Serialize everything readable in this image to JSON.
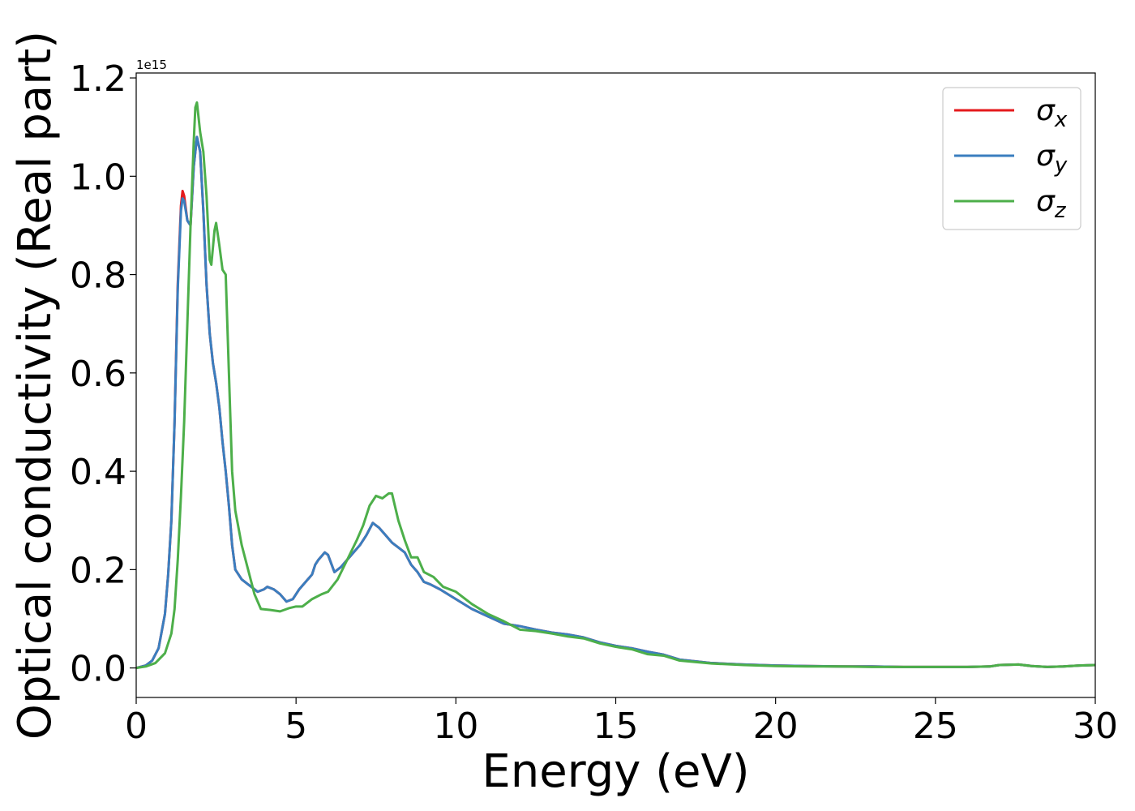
{
  "chart_data": {
    "type": "line",
    "title": "",
    "xlabel": "Energy (eV)",
    "ylabel": "Optical conductivity (Real part)",
    "y_offset_label": "1e15",
    "xlim": [
      0,
      30
    ],
    "ylim": [
      -0.06,
      1.21
    ],
    "xticks": [
      0,
      5,
      10,
      15,
      20,
      25,
      30
    ],
    "yticks": [
      0.0,
      0.2,
      0.4,
      0.6,
      0.8,
      1.0,
      1.2
    ],
    "xtick_labels": [
      "0",
      "5",
      "10",
      "15",
      "20",
      "25",
      "30"
    ],
    "ytick_labels": [
      "0.0",
      "0.2",
      "0.4",
      "0.6",
      "0.8",
      "1.0",
      "1.2"
    ],
    "grid": false,
    "legend_position": "top-right",
    "series": [
      {
        "name": "σx",
        "label_symbol": "σ",
        "label_sub": "x",
        "color": "#e41a1c",
        "points": [
          [
            0,
            0
          ],
          [
            0.3,
            0.005
          ],
          [
            0.5,
            0.015
          ],
          [
            0.7,
            0.04
          ],
          [
            0.9,
            0.11
          ],
          [
            1.0,
            0.19
          ],
          [
            1.1,
            0.3
          ],
          [
            1.2,
            0.5
          ],
          [
            1.3,
            0.78
          ],
          [
            1.4,
            0.94
          ],
          [
            1.45,
            0.97
          ],
          [
            1.5,
            0.96
          ],
          [
            1.6,
            0.91
          ],
          [
            1.7,
            0.9
          ],
          [
            1.8,
            1.02
          ],
          [
            1.9,
            1.08
          ],
          [
            2.0,
            1.05
          ],
          [
            2.1,
            0.93
          ],
          [
            2.2,
            0.78
          ],
          [
            2.3,
            0.68
          ],
          [
            2.4,
            0.62
          ],
          [
            2.5,
            0.58
          ],
          [
            2.6,
            0.53
          ],
          [
            2.7,
            0.46
          ],
          [
            2.8,
            0.4
          ],
          [
            2.9,
            0.33
          ],
          [
            3.0,
            0.25
          ],
          [
            3.1,
            0.2
          ],
          [
            3.3,
            0.18
          ],
          [
            3.5,
            0.17
          ],
          [
            3.8,
            0.155
          ],
          [
            4.0,
            0.16
          ],
          [
            4.1,
            0.165
          ],
          [
            4.3,
            0.16
          ],
          [
            4.5,
            0.15
          ],
          [
            4.7,
            0.135
          ],
          [
            4.9,
            0.14
          ],
          [
            5.1,
            0.16
          ],
          [
            5.3,
            0.175
          ],
          [
            5.5,
            0.19
          ],
          [
            5.6,
            0.21
          ],
          [
            5.7,
            0.22
          ],
          [
            5.9,
            0.235
          ],
          [
            6.0,
            0.23
          ],
          [
            6.2,
            0.195
          ],
          [
            6.4,
            0.205
          ],
          [
            6.6,
            0.22
          ],
          [
            6.8,
            0.235
          ],
          [
            7.0,
            0.25
          ],
          [
            7.2,
            0.27
          ],
          [
            7.4,
            0.295
          ],
          [
            7.6,
            0.285
          ],
          [
            7.8,
            0.27
          ],
          [
            8.0,
            0.255
          ],
          [
            8.2,
            0.245
          ],
          [
            8.4,
            0.235
          ],
          [
            8.6,
            0.21
          ],
          [
            8.8,
            0.195
          ],
          [
            9.0,
            0.175
          ],
          [
            9.2,
            0.17
          ],
          [
            9.5,
            0.16
          ],
          [
            10.0,
            0.14
          ],
          [
            10.5,
            0.12
          ],
          [
            11.0,
            0.105
          ],
          [
            11.5,
            0.09
          ],
          [
            12.0,
            0.085
          ],
          [
            12.5,
            0.078
          ],
          [
            13.0,
            0.072
          ],
          [
            13.5,
            0.068
          ],
          [
            14.0,
            0.062
          ],
          [
            14.5,
            0.052
          ],
          [
            15.0,
            0.045
          ],
          [
            15.5,
            0.04
          ],
          [
            16.0,
            0.033
          ],
          [
            16.5,
            0.027
          ],
          [
            17.0,
            0.017
          ],
          [
            18.0,
            0.01
          ],
          [
            19.0,
            0.007
          ],
          [
            20.0,
            0.005
          ],
          [
            21.0,
            0.004
          ],
          [
            22.0,
            0.003
          ],
          [
            23.0,
            0.003
          ],
          [
            24.0,
            0.002
          ],
          [
            25.0,
            0.002
          ],
          [
            26.0,
            0.002
          ],
          [
            26.7,
            0.003
          ],
          [
            27.0,
            0.006
          ],
          [
            27.6,
            0.007
          ],
          [
            28.0,
            0.004
          ],
          [
            28.5,
            0.002
          ],
          [
            29.0,
            0.003
          ],
          [
            29.5,
            0.005
          ],
          [
            30.0,
            0.006
          ]
        ]
      },
      {
        "name": "σy",
        "label_symbol": "σ",
        "label_sub": "y",
        "color": "#3a7ebf",
        "points": [
          [
            0,
            0
          ],
          [
            0.3,
            0.005
          ],
          [
            0.5,
            0.015
          ],
          [
            0.7,
            0.04
          ],
          [
            0.9,
            0.11
          ],
          [
            1.0,
            0.19
          ],
          [
            1.1,
            0.3
          ],
          [
            1.2,
            0.5
          ],
          [
            1.3,
            0.77
          ],
          [
            1.4,
            0.93
          ],
          [
            1.45,
            0.955
          ],
          [
            1.5,
            0.95
          ],
          [
            1.6,
            0.91
          ],
          [
            1.7,
            0.9
          ],
          [
            1.8,
            1.02
          ],
          [
            1.9,
            1.08
          ],
          [
            2.0,
            1.05
          ],
          [
            2.1,
            0.93
          ],
          [
            2.2,
            0.78
          ],
          [
            2.3,
            0.68
          ],
          [
            2.4,
            0.62
          ],
          [
            2.5,
            0.58
          ],
          [
            2.6,
            0.53
          ],
          [
            2.7,
            0.46
          ],
          [
            2.8,
            0.4
          ],
          [
            2.9,
            0.33
          ],
          [
            3.0,
            0.25
          ],
          [
            3.1,
            0.2
          ],
          [
            3.3,
            0.18
          ],
          [
            3.5,
            0.17
          ],
          [
            3.8,
            0.155
          ],
          [
            4.0,
            0.16
          ],
          [
            4.1,
            0.165
          ],
          [
            4.3,
            0.16
          ],
          [
            4.5,
            0.15
          ],
          [
            4.7,
            0.135
          ],
          [
            4.9,
            0.14
          ],
          [
            5.1,
            0.16
          ],
          [
            5.3,
            0.175
          ],
          [
            5.5,
            0.19
          ],
          [
            5.6,
            0.21
          ],
          [
            5.7,
            0.22
          ],
          [
            5.9,
            0.235
          ],
          [
            6.0,
            0.23
          ],
          [
            6.2,
            0.195
          ],
          [
            6.4,
            0.205
          ],
          [
            6.6,
            0.22
          ],
          [
            6.8,
            0.235
          ],
          [
            7.0,
            0.25
          ],
          [
            7.2,
            0.27
          ],
          [
            7.4,
            0.295
          ],
          [
            7.6,
            0.285
          ],
          [
            7.8,
            0.27
          ],
          [
            8.0,
            0.255
          ],
          [
            8.2,
            0.245
          ],
          [
            8.4,
            0.235
          ],
          [
            8.6,
            0.21
          ],
          [
            8.8,
            0.195
          ],
          [
            9.0,
            0.175
          ],
          [
            9.2,
            0.17
          ],
          [
            9.5,
            0.16
          ],
          [
            10.0,
            0.14
          ],
          [
            10.5,
            0.12
          ],
          [
            11.0,
            0.105
          ],
          [
            11.5,
            0.09
          ],
          [
            12.0,
            0.085
          ],
          [
            12.5,
            0.078
          ],
          [
            13.0,
            0.072
          ],
          [
            13.5,
            0.068
          ],
          [
            14.0,
            0.062
          ],
          [
            14.5,
            0.052
          ],
          [
            15.0,
            0.045
          ],
          [
            15.5,
            0.04
          ],
          [
            16.0,
            0.033
          ],
          [
            16.5,
            0.027
          ],
          [
            17.0,
            0.017
          ],
          [
            18.0,
            0.01
          ],
          [
            19.0,
            0.007
          ],
          [
            20.0,
            0.005
          ],
          [
            21.0,
            0.004
          ],
          [
            22.0,
            0.003
          ],
          [
            23.0,
            0.003
          ],
          [
            24.0,
            0.002
          ],
          [
            25.0,
            0.002
          ],
          [
            26.0,
            0.002
          ],
          [
            26.7,
            0.003
          ],
          [
            27.0,
            0.006
          ],
          [
            27.6,
            0.007
          ],
          [
            28.0,
            0.004
          ],
          [
            28.5,
            0.002
          ],
          [
            29.0,
            0.003
          ],
          [
            29.5,
            0.005
          ],
          [
            30.0,
            0.006
          ]
        ]
      },
      {
        "name": "σz",
        "label_symbol": "σ",
        "label_sub": "z",
        "color": "#4daf4a",
        "points": [
          [
            0,
            0
          ],
          [
            0.3,
            0.003
          ],
          [
            0.6,
            0.01
          ],
          [
            0.9,
            0.03
          ],
          [
            1.1,
            0.07
          ],
          [
            1.2,
            0.12
          ],
          [
            1.3,
            0.22
          ],
          [
            1.4,
            0.35
          ],
          [
            1.5,
            0.5
          ],
          [
            1.6,
            0.7
          ],
          [
            1.7,
            0.9
          ],
          [
            1.8,
            1.07
          ],
          [
            1.85,
            1.14
          ],
          [
            1.9,
            1.15
          ],
          [
            2.0,
            1.09
          ],
          [
            2.1,
            1.05
          ],
          [
            2.2,
            0.96
          ],
          [
            2.3,
            0.83
          ],
          [
            2.35,
            0.82
          ],
          [
            2.45,
            0.89
          ],
          [
            2.5,
            0.905
          ],
          [
            2.6,
            0.86
          ],
          [
            2.7,
            0.81
          ],
          [
            2.8,
            0.8
          ],
          [
            2.9,
            0.6
          ],
          [
            3.0,
            0.4
          ],
          [
            3.1,
            0.32
          ],
          [
            3.3,
            0.25
          ],
          [
            3.5,
            0.2
          ],
          [
            3.7,
            0.15
          ],
          [
            3.9,
            0.12
          ],
          [
            4.2,
            0.118
          ],
          [
            4.5,
            0.115
          ],
          [
            4.8,
            0.122
          ],
          [
            5.0,
            0.125
          ],
          [
            5.2,
            0.125
          ],
          [
            5.5,
            0.14
          ],
          [
            5.8,
            0.15
          ],
          [
            6.0,
            0.155
          ],
          [
            6.3,
            0.18
          ],
          [
            6.6,
            0.22
          ],
          [
            6.9,
            0.26
          ],
          [
            7.1,
            0.29
          ],
          [
            7.3,
            0.33
          ],
          [
            7.5,
            0.35
          ],
          [
            7.7,
            0.345
          ],
          [
            7.9,
            0.355
          ],
          [
            8.0,
            0.355
          ],
          [
            8.2,
            0.3
          ],
          [
            8.4,
            0.26
          ],
          [
            8.6,
            0.225
          ],
          [
            8.8,
            0.225
          ],
          [
            9.0,
            0.195
          ],
          [
            9.3,
            0.185
          ],
          [
            9.6,
            0.165
          ],
          [
            10.0,
            0.155
          ],
          [
            10.5,
            0.13
          ],
          [
            11.0,
            0.11
          ],
          [
            11.5,
            0.095
          ],
          [
            12.0,
            0.078
          ],
          [
            12.5,
            0.075
          ],
          [
            13.0,
            0.07
          ],
          [
            13.5,
            0.064
          ],
          [
            14.0,
            0.06
          ],
          [
            14.5,
            0.05
          ],
          [
            15.0,
            0.043
          ],
          [
            15.5,
            0.038
          ],
          [
            16.0,
            0.028
          ],
          [
            16.5,
            0.025
          ],
          [
            17.0,
            0.015
          ],
          [
            18.0,
            0.009
          ],
          [
            19.0,
            0.006
          ],
          [
            20.0,
            0.004
          ],
          [
            21.0,
            0.003
          ],
          [
            22.0,
            0.003
          ],
          [
            23.0,
            0.002
          ],
          [
            24.0,
            0.002
          ],
          [
            25.0,
            0.002
          ],
          [
            26.0,
            0.002
          ],
          [
            26.7,
            0.003
          ],
          [
            27.0,
            0.006
          ],
          [
            27.6,
            0.007
          ],
          [
            28.0,
            0.004
          ],
          [
            28.5,
            0.002
          ],
          [
            29.0,
            0.003
          ],
          [
            29.5,
            0.005
          ],
          [
            30.0,
            0.006
          ]
        ]
      }
    ]
  }
}
